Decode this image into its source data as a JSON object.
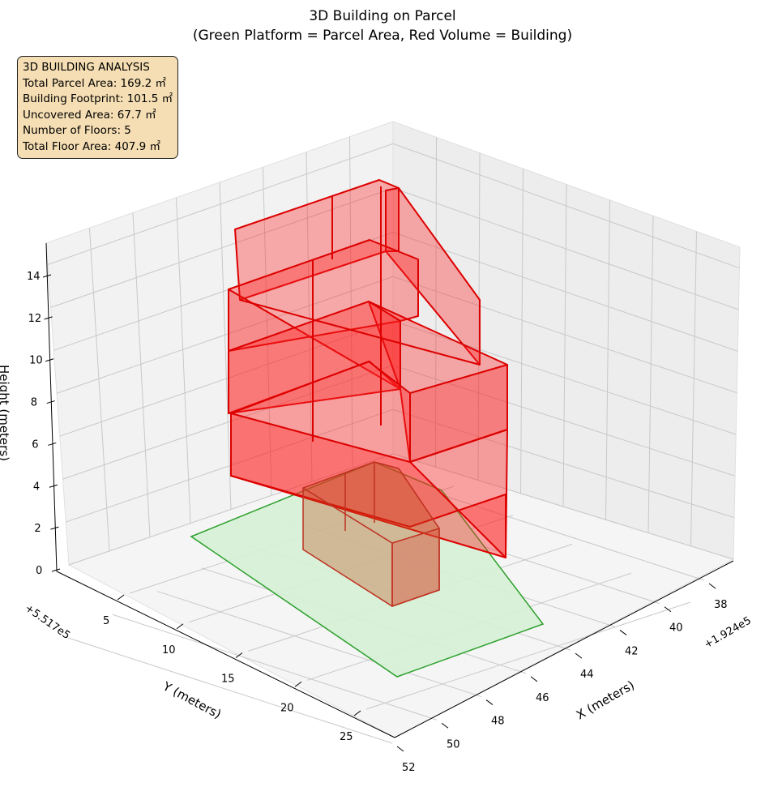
{
  "chart_data": {
    "type": "3d-polygons",
    "title": "3D Building on Parcel",
    "subtitle": "(Green Platform = Parcel Area, Red Volume = Building)",
    "xlabel": "X (meters)",
    "ylabel": "Y (meters)",
    "zlabel": "Height (meters)",
    "x_offset": "+1.924e5",
    "y_offset": "+5.517e5",
    "x_ticks": [
      38,
      40,
      42,
      44,
      46,
      48,
      50,
      52
    ],
    "y_ticks": [
      5,
      10,
      15,
      20,
      25
    ],
    "z_ticks": [
      0,
      2,
      4,
      6,
      8,
      10,
      12,
      14
    ],
    "xlim": [
      37,
      52
    ],
    "ylim": [
      0,
      27
    ],
    "zlim": [
      0,
      15
    ],
    "series": [
      {
        "name": "Parcel Area",
        "color": "#2ca02c",
        "fill": "#d5f1d5"
      },
      {
        "name": "Building",
        "color": "#dd0000",
        "fill": "#ff0000"
      }
    ]
  },
  "info": {
    "heading": "3D BUILDING ANALYSIS",
    "lines": [
      "Total Parcel Area: 169.2 ㎡",
      "Building Footprint: 101.5 ㎡",
      "Uncovered Area: 67.7 ㎡",
      "Number of Floors: 5",
      "Total Floor Area: 407.9 ㎡"
    ]
  }
}
